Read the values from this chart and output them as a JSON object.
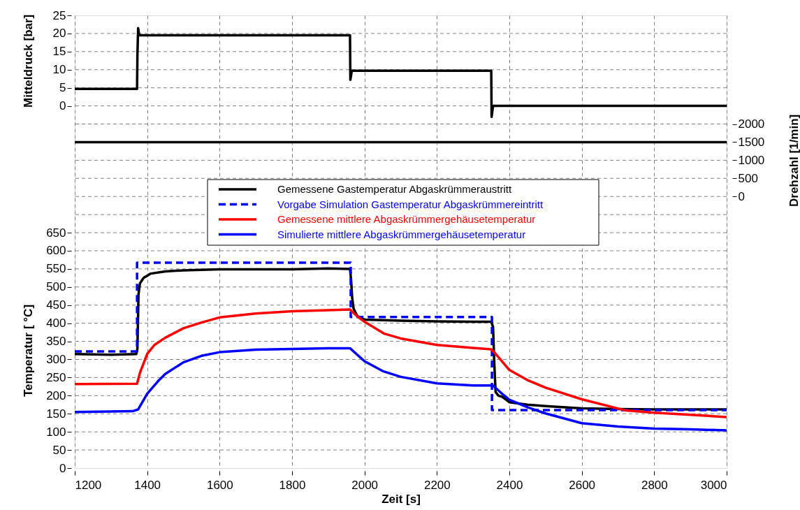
{
  "chart_data": {
    "type": "line",
    "xlabel": "Zeit [s]",
    "ylabel": "Temperatur [ °C]",
    "y2label": "Drehzahl [1/min]",
    "y3label": "Mitteldruck [bar]",
    "xlim": [
      1200,
      3000
    ],
    "xticks": [
      1200,
      1400,
      1600,
      1800,
      2000,
      2200,
      2400,
      2600,
      2800,
      3000
    ],
    "ylim": [
      0,
      1250
    ],
    "yticks": [
      0,
      50,
      100,
      150,
      200,
      250,
      300,
      350,
      400,
      450,
      500,
      550,
      600,
      650
    ],
    "y2lim": [
      -7500,
      5000
    ],
    "y2ticks": [
      0,
      500,
      1000,
      1500,
      2000
    ],
    "y3lim": [
      -100,
      25
    ],
    "y3ticks": [
      0,
      5,
      10,
      15,
      20,
      25
    ],
    "grid": true,
    "legend": "top",
    "series": [
      {
        "name": "Gemessene Gastemperatur Abgaskrümmeraustritt",
        "color": "#000000",
        "line_style": "solid",
        "x": [
          1200,
          1300,
          1370,
          1373,
          1376,
          1380,
          1390,
          1410,
          1450,
          1500,
          1600,
          1800,
          1900,
          1960,
          1963,
          1966,
          1970,
          1980,
          2000,
          2100,
          2200,
          2300,
          2350,
          2355,
          2358,
          2362,
          2370,
          2380,
          2400,
          2450,
          2500,
          2600,
          2700,
          2800,
          3000
        ],
        "values": [
          315,
          313,
          315,
          330,
          480,
          510,
          525,
          537,
          543,
          546,
          549,
          549,
          551,
          550,
          520,
          470,
          440,
          420,
          410,
          407,
          405,
          404,
          404,
          390,
          300,
          210,
          200,
          197,
          182,
          175,
          171,
          165,
          163,
          162,
          162
        ]
      },
      {
        "name": "Vorgabe Simulation Gastemperatur Abgaskrümmereintritt",
        "color": "#0000ff",
        "line_style": "dashed",
        "x": [
          1200,
          1372,
          1372,
          1962,
          1962,
          2352,
          2352,
          3000
        ],
        "values": [
          322,
          322,
          567,
          567,
          417,
          417,
          160,
          160
        ]
      },
      {
        "name": "Gemessene mittlere Abgaskrümmergehäusetemperatur",
        "color": "#ff0000",
        "line_style": "solid",
        "x": [
          1200,
          1372,
          1380,
          1400,
          1420,
          1450,
          1500,
          1550,
          1600,
          1700,
          1800,
          1900,
          1960,
          1980,
          2000,
          2055,
          2100,
          2200,
          2300,
          2350,
          2360,
          2400,
          2450,
          2500,
          2600,
          2722,
          2800,
          2900,
          3000
        ],
        "values": [
          232,
          233,
          263,
          315,
          340,
          360,
          386,
          402,
          416,
          427,
          433,
          436,
          438,
          419,
          404,
          371,
          358,
          340,
          332,
          328,
          318,
          271,
          243,
          222,
          190,
          159,
          153,
          147,
          141
        ]
      },
      {
        "name": "Simulierte mittlere Abgaskrümmergehäusetemperatur",
        "color": "#0000ff",
        "line_style": "solid",
        "x": [
          1200,
          1360,
          1375,
          1400,
          1430,
          1450,
          1500,
          1550,
          1600,
          1700,
          1800,
          1900,
          1960,
          2000,
          2050,
          2100,
          2200,
          2300,
          2355,
          2380,
          2400,
          2450,
          2500,
          2600,
          2700,
          2800,
          2900,
          3000
        ],
        "values": [
          155,
          157,
          162,
          205,
          240,
          260,
          292,
          310,
          320,
          327,
          329,
          331,
          331,
          295,
          268,
          252,
          234,
          228,
          228,
          205,
          189,
          168,
          151,
          124,
          115,
          109,
          107,
          104
        ]
      },
      {
        "axis": "y3",
        "color": "#000000",
        "line_style": "solid",
        "x": [
          1200,
          1372,
          1373,
          1375,
          1378,
          1960,
          1961,
          1965,
          2350,
          2351,
          2355,
          3000
        ],
        "values": [
          4.7,
          4.7,
          14,
          21.5,
          19.5,
          19.5,
          7.2,
          9.7,
          9.7,
          -3,
          0,
          0
        ]
      },
      {
        "axis": "y2",
        "color": "#000000",
        "line_style": "solid",
        "x": [
          1200,
          3000
        ],
        "values": [
          1500,
          1500
        ]
      }
    ]
  }
}
